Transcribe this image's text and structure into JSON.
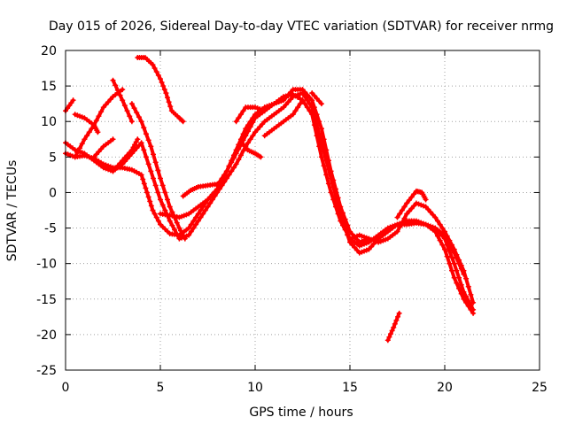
{
  "chart_data": {
    "type": "scatter",
    "title": "Day 015 of 2026, Sidereal Day-to-day VTEC variation (SDTVAR) for receiver nrmg",
    "xlabel": "GPS time / hours",
    "ylabel": "SDTVAR / TECUs",
    "xlim": [
      0,
      25
    ],
    "ylim": [
      -25,
      20
    ],
    "xticks": [
      0,
      5,
      10,
      15,
      20,
      25
    ],
    "yticks": [
      -25,
      -20,
      -15,
      -10,
      -5,
      0,
      5,
      10,
      15,
      20
    ],
    "grid": true,
    "marker": "+",
    "color": "#ff0000",
    "series": [
      {
        "name": "trace-1",
        "points": [
          [
            0,
            5.5
          ],
          [
            0.5,
            5
          ],
          [
            1,
            5.2
          ],
          [
            1.5,
            4.8
          ],
          [
            2,
            4
          ],
          [
            2.5,
            3.5
          ],
          [
            3,
            3.5
          ],
          [
            3.5,
            3.2
          ],
          [
            4,
            2.5
          ],
          [
            4.3,
            0
          ],
          [
            4.6,
            -2.5
          ],
          [
            5,
            -4.5
          ],
          [
            5.5,
            -5.8
          ],
          [
            6,
            -6
          ],
          [
            6.5,
            -5
          ],
          [
            7,
            -3
          ],
          [
            7.5,
            -1
          ],
          [
            8,
            0.5
          ],
          [
            8.5,
            3
          ],
          [
            9,
            5.5
          ],
          [
            9.5,
            8
          ],
          [
            10,
            10.5
          ],
          [
            10.5,
            11.5
          ],
          [
            11,
            12.5
          ],
          [
            11.5,
            13.5
          ],
          [
            12,
            13.8
          ],
          [
            12.5,
            13
          ],
          [
            13,
            11
          ],
          [
            13.5,
            5
          ],
          [
            14,
            0
          ],
          [
            14.5,
            -4
          ],
          [
            15,
            -6.5
          ],
          [
            15.5,
            -7.5
          ],
          [
            16,
            -7
          ],
          [
            16.5,
            -6
          ],
          [
            17,
            -5
          ],
          [
            17.5,
            -4.5
          ],
          [
            18,
            -4.5
          ],
          [
            18.5,
            -4.3
          ],
          [
            19,
            -4.5
          ],
          [
            19.5,
            -5
          ],
          [
            20,
            -6.5
          ],
          [
            20.5,
            -10
          ],
          [
            21,
            -14
          ],
          [
            21.5,
            -16.5
          ]
        ]
      },
      {
        "name": "trace-2",
        "points": [
          [
            0,
            7
          ],
          [
            0.5,
            6
          ],
          [
            1,
            5.5
          ],
          [
            1.5,
            4.5
          ],
          [
            2,
            3.5
          ],
          [
            2.5,
            3
          ],
          [
            3,
            4
          ],
          [
            3.5,
            5.5
          ],
          [
            4,
            7
          ],
          [
            4.5,
            3
          ],
          [
            5,
            -1
          ],
          [
            5.5,
            -4
          ],
          [
            6,
            -6.5
          ],
          [
            6.5,
            -6
          ],
          [
            7,
            -4
          ],
          [
            7.5,
            -2
          ],
          [
            8,
            0
          ],
          [
            8.5,
            2
          ],
          [
            9,
            4
          ],
          [
            9.5,
            6.5
          ],
          [
            10,
            8.5
          ],
          [
            10.5,
            10
          ],
          [
            11,
            11
          ],
          [
            11.5,
            12
          ],
          [
            12,
            13.5
          ],
          [
            12.5,
            14
          ],
          [
            13,
            12
          ],
          [
            13.5,
            7
          ],
          [
            14,
            2
          ],
          [
            14.5,
            -3
          ],
          [
            15,
            -7
          ],
          [
            15.5,
            -8.5
          ],
          [
            16,
            -8
          ],
          [
            16.5,
            -6.5
          ],
          [
            17,
            -5.5
          ],
          [
            17.5,
            -4.5
          ],
          [
            18,
            -4
          ],
          [
            18.5,
            -4
          ],
          [
            19,
            -4.5
          ],
          [
            19.5,
            -5.5
          ],
          [
            20,
            -8
          ],
          [
            20.5,
            -12
          ],
          [
            21,
            -15
          ],
          [
            21.5,
            -17
          ]
        ]
      },
      {
        "name": "trace-3",
        "points": [
          [
            0,
            11.5
          ],
          [
            0.4,
            13
          ]
        ]
      },
      {
        "name": "trace-4",
        "points": [
          [
            0.5,
            11
          ],
          [
            1,
            10.5
          ],
          [
            1.5,
            9.5
          ],
          [
            1.7,
            8.5
          ]
        ]
      },
      {
        "name": "trace-5",
        "points": [
          [
            0.5,
            5
          ],
          [
            1,
            7.5
          ],
          [
            1.5,
            9.5
          ],
          [
            2,
            12
          ],
          [
            2.5,
            13.5
          ],
          [
            3,
            14.5
          ]
        ]
      },
      {
        "name": "trace-6",
        "points": [
          [
            1.5,
            5
          ],
          [
            2,
            6.5
          ],
          [
            2.5,
            7.5
          ]
        ]
      },
      {
        "name": "trace-7",
        "points": [
          [
            2.5,
            15.8
          ],
          [
            3,
            13
          ],
          [
            3.5,
            10
          ]
        ]
      },
      {
        "name": "trace-8",
        "points": [
          [
            2.5,
            3
          ],
          [
            3,
            4.5
          ],
          [
            3.5,
            6
          ],
          [
            3.8,
            7.5
          ]
        ]
      },
      {
        "name": "trace-9",
        "points": [
          [
            3.5,
            12.5
          ],
          [
            4,
            10
          ],
          [
            4.5,
            6.5
          ],
          [
            5,
            2
          ],
          [
            5.5,
            -2
          ],
          [
            6,
            -5
          ],
          [
            6.3,
            -6.5
          ]
        ]
      },
      {
        "name": "trace-10",
        "points": [
          [
            3.8,
            19
          ],
          [
            4.2,
            19
          ],
          [
            4.6,
            18
          ],
          [
            5,
            16
          ],
          [
            5.3,
            14
          ],
          [
            5.6,
            11.5
          ],
          [
            6,
            10.5
          ],
          [
            6.2,
            10
          ]
        ]
      },
      {
        "name": "trace-11",
        "points": [
          [
            5,
            -3
          ],
          [
            5.5,
            -3.2
          ],
          [
            6,
            -3.5
          ],
          [
            6.5,
            -3
          ],
          [
            7,
            -2
          ],
          [
            7.5,
            -1
          ]
        ]
      },
      {
        "name": "trace-12",
        "points": [
          [
            6.2,
            -0.5
          ],
          [
            6.6,
            0.3
          ],
          [
            7,
            0.8
          ],
          [
            7.5,
            1
          ],
          [
            8,
            1.2
          ]
        ]
      },
      {
        "name": "trace-13",
        "points": [
          [
            8,
            1
          ],
          [
            8.5,
            3
          ],
          [
            9,
            6
          ],
          [
            9.5,
            9
          ],
          [
            10,
            11
          ],
          [
            10.5,
            12
          ],
          [
            11,
            12.5
          ],
          [
            11.5,
            13
          ],
          [
            12,
            14.5
          ],
          [
            12.5,
            14.5
          ],
          [
            13,
            13
          ],
          [
            13.5,
            9
          ],
          [
            14,
            3
          ],
          [
            14.5,
            -2
          ],
          [
            15,
            -5.5
          ],
          [
            15.5,
            -7
          ],
          [
            16,
            -6.5
          ]
        ]
      },
      {
        "name": "trace-14",
        "points": [
          [
            9,
            10
          ],
          [
            9.5,
            12
          ],
          [
            10,
            12
          ],
          [
            10.5,
            11.5
          ]
        ]
      },
      {
        "name": "trace-15",
        "points": [
          [
            9.3,
            7
          ],
          [
            9.6,
            6
          ],
          [
            10,
            5.5
          ],
          [
            10.3,
            5
          ]
        ]
      },
      {
        "name": "trace-16",
        "points": [
          [
            10.5,
            8
          ],
          [
            11,
            9
          ],
          [
            11.5,
            10
          ],
          [
            12,
            11
          ],
          [
            12.5,
            13
          ]
        ]
      },
      {
        "name": "trace-17",
        "points": [
          [
            13,
            14
          ],
          [
            13.5,
            12.5
          ]
        ]
      },
      {
        "name": "trace-18",
        "points": [
          [
            15,
            -6.5
          ],
          [
            15.5,
            -6
          ],
          [
            16,
            -6.5
          ],
          [
            16.5,
            -7
          ],
          [
            17,
            -6.5
          ],
          [
            17.5,
            -5.5
          ],
          [
            18,
            -3
          ],
          [
            18.5,
            -1.5
          ],
          [
            19,
            -2
          ],
          [
            19.5,
            -3.5
          ],
          [
            20,
            -5.5
          ],
          [
            20.5,
            -8
          ],
          [
            21,
            -11
          ],
          [
            21.5,
            -15.5
          ]
        ]
      },
      {
        "name": "trace-19",
        "points": [
          [
            17.5,
            -3.5
          ],
          [
            18,
            -1.5
          ],
          [
            18.5,
            0.2
          ],
          [
            18.8,
            0
          ],
          [
            19,
            -1
          ]
        ]
      },
      {
        "name": "trace-20",
        "points": [
          [
            17,
            -20.8
          ],
          [
            17.3,
            -19
          ],
          [
            17.6,
            -17
          ]
        ]
      },
      {
        "name": "trace-21",
        "points": [
          [
            19.5,
            -5
          ],
          [
            20,
            -6
          ],
          [
            20.5,
            -8.5
          ],
          [
            21,
            -11.5
          ]
        ]
      }
    ]
  }
}
